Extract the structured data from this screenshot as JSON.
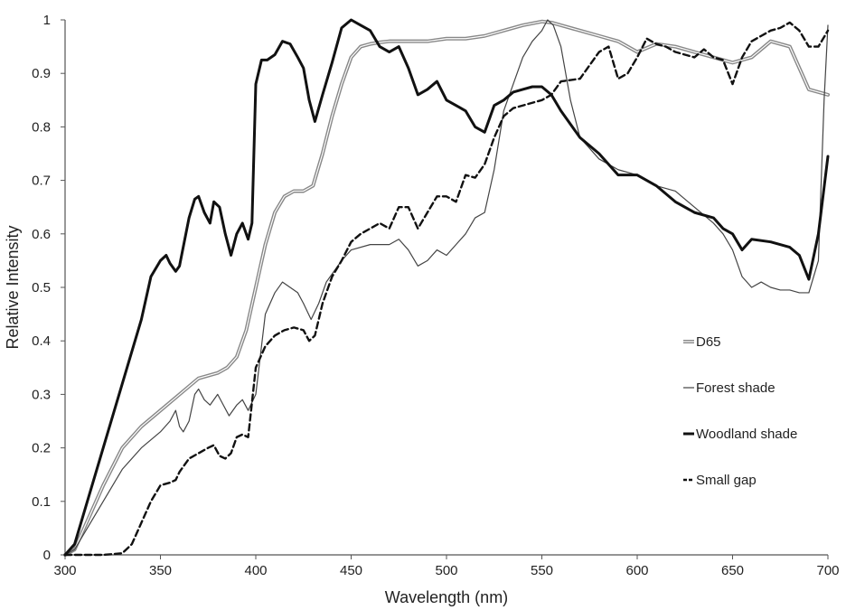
{
  "chart_data": {
    "type": "line",
    "title": "",
    "xlabel": "Wavelength (nm)",
    "ylabel": "Relative Intensity",
    "xlim": [
      300,
      700
    ],
    "ylim": [
      0,
      1
    ],
    "xticks": [
      300,
      350,
      400,
      450,
      500,
      550,
      600,
      650,
      700
    ],
    "yticks": [
      0,
      0.1,
      0.2,
      0.3,
      0.4,
      0.5,
      0.6,
      0.7,
      0.8,
      0.9,
      1
    ],
    "grid": false,
    "legend_position": "lower-right",
    "series": [
      {
        "name": "D65",
        "style": "double",
        "color": "#888888",
        "x": [
          300,
          305,
          310,
          320,
          330,
          340,
          350,
          360,
          365,
          370,
          380,
          385,
          390,
          395,
          400,
          405,
          410,
          415,
          420,
          425,
          430,
          435,
          440,
          445,
          450,
          455,
          460,
          465,
          470,
          480,
          490,
          500,
          510,
          520,
          530,
          540,
          550,
          555,
          560,
          570,
          580,
          590,
          600,
          610,
          620,
          630,
          640,
          650,
          660,
          670,
          680,
          690,
          700
        ],
        "y": [
          0,
          0.01,
          0.05,
          0.13,
          0.2,
          0.24,
          0.27,
          0.3,
          0.315,
          0.33,
          0.34,
          0.35,
          0.37,
          0.42,
          0.5,
          0.58,
          0.64,
          0.67,
          0.68,
          0.68,
          0.69,
          0.75,
          0.82,
          0.88,
          0.93,
          0.95,
          0.955,
          0.958,
          0.96,
          0.96,
          0.96,
          0.965,
          0.965,
          0.97,
          0.98,
          0.99,
          0.997,
          0.995,
          0.99,
          0.98,
          0.97,
          0.96,
          0.94,
          0.955,
          0.95,
          0.94,
          0.93,
          0.92,
          0.93,
          0.96,
          0.95,
          0.87,
          0.86
        ]
      },
      {
        "name": "Forest shade",
        "style": "thin",
        "color": "#444444",
        "x": [
          300,
          305,
          310,
          320,
          330,
          340,
          350,
          355,
          358,
          360,
          362,
          365,
          368,
          370,
          373,
          376,
          380,
          383,
          386,
          390,
          393,
          396,
          400,
          405,
          410,
          414,
          418,
          422,
          425,
          429,
          433,
          437,
          441,
          445,
          450,
          460,
          470,
          475,
          480,
          485,
          490,
          495,
          500,
          505,
          510,
          515,
          520,
          525,
          530,
          535,
          540,
          545,
          550,
          553,
          556,
          560,
          565,
          570,
          575,
          580,
          590,
          600,
          610,
          620,
          630,
          640,
          645,
          650,
          655,
          660,
          665,
          670,
          675,
          680,
          685,
          690,
          695,
          698,
          700
        ],
        "y": [
          0,
          0.01,
          0.04,
          0.1,
          0.16,
          0.2,
          0.23,
          0.25,
          0.27,
          0.24,
          0.23,
          0.25,
          0.3,
          0.31,
          0.29,
          0.28,
          0.3,
          0.28,
          0.26,
          0.28,
          0.29,
          0.27,
          0.3,
          0.45,
          0.49,
          0.51,
          0.5,
          0.49,
          0.47,
          0.44,
          0.47,
          0.51,
          0.53,
          0.55,
          0.57,
          0.58,
          0.58,
          0.59,
          0.57,
          0.54,
          0.55,
          0.57,
          0.56,
          0.58,
          0.6,
          0.63,
          0.64,
          0.72,
          0.83,
          0.88,
          0.93,
          0.96,
          0.98,
          1.0,
          0.99,
          0.95,
          0.85,
          0.78,
          0.76,
          0.74,
          0.72,
          0.71,
          0.69,
          0.68,
          0.65,
          0.62,
          0.6,
          0.57,
          0.52,
          0.5,
          0.51,
          0.5,
          0.495,
          0.495,
          0.49,
          0.49,
          0.55,
          0.85,
          0.99
        ]
      },
      {
        "name": "Woodland shade",
        "style": "thick",
        "color": "#111111",
        "x": [
          300,
          305,
          310,
          320,
          330,
          340,
          345,
          350,
          353,
          355,
          358,
          360,
          365,
          368,
          370,
          373,
          376,
          378,
          381,
          384,
          387,
          390,
          393,
          396,
          398,
          400,
          403,
          406,
          410,
          414,
          418,
          422,
          425,
          428,
          431,
          435,
          440,
          445,
          450,
          455,
          460,
          465,
          470,
          475,
          480,
          485,
          490,
          495,
          500,
          505,
          510,
          515,
          520,
          525,
          530,
          535,
          540,
          545,
          550,
          555,
          560,
          570,
          580,
          590,
          600,
          610,
          620,
          630,
          640,
          645,
          650,
          655,
          660,
          670,
          680,
          685,
          690,
          695,
          700
        ],
        "y": [
          0,
          0.02,
          0.08,
          0.2,
          0.32,
          0.44,
          0.52,
          0.55,
          0.56,
          0.545,
          0.53,
          0.54,
          0.63,
          0.665,
          0.67,
          0.64,
          0.62,
          0.66,
          0.65,
          0.6,
          0.56,
          0.6,
          0.62,
          0.59,
          0.62,
          0.88,
          0.925,
          0.925,
          0.935,
          0.96,
          0.955,
          0.93,
          0.91,
          0.85,
          0.81,
          0.86,
          0.92,
          0.985,
          1.0,
          0.99,
          0.98,
          0.95,
          0.94,
          0.95,
          0.91,
          0.86,
          0.87,
          0.885,
          0.85,
          0.84,
          0.83,
          0.8,
          0.79,
          0.84,
          0.85,
          0.865,
          0.87,
          0.875,
          0.875,
          0.86,
          0.83,
          0.78,
          0.75,
          0.71,
          0.71,
          0.69,
          0.66,
          0.64,
          0.63,
          0.61,
          0.6,
          0.57,
          0.59,
          0.585,
          0.575,
          0.56,
          0.515,
          0.6,
          0.745
        ]
      },
      {
        "name": "Small gap",
        "style": "dashed",
        "color": "#111111",
        "x": [
          300,
          310,
          320,
          330,
          335,
          340,
          345,
          350,
          355,
          358,
          360,
          365,
          370,
          375,
          378,
          381,
          384,
          387,
          390,
          393,
          396,
          400,
          405,
          410,
          415,
          420,
          425,
          428,
          431,
          435,
          440,
          445,
          450,
          455,
          460,
          465,
          470,
          475,
          480,
          485,
          490,
          495,
          500,
          505,
          510,
          515,
          520,
          525,
          530,
          535,
          540,
          545,
          550,
          555,
          560,
          570,
          580,
          585,
          590,
          595,
          600,
          605,
          610,
          615,
          620,
          625,
          630,
          635,
          640,
          645,
          650,
          655,
          660,
          665,
          670,
          675,
          680,
          685,
          690,
          695,
          700
        ],
        "y": [
          0,
          0,
          0,
          0.003,
          0.02,
          0.06,
          0.1,
          0.13,
          0.135,
          0.14,
          0.155,
          0.18,
          0.19,
          0.2,
          0.205,
          0.185,
          0.18,
          0.19,
          0.22,
          0.225,
          0.22,
          0.35,
          0.39,
          0.41,
          0.42,
          0.425,
          0.42,
          0.4,
          0.41,
          0.47,
          0.52,
          0.55,
          0.585,
          0.6,
          0.61,
          0.62,
          0.61,
          0.65,
          0.65,
          0.61,
          0.64,
          0.67,
          0.67,
          0.66,
          0.71,
          0.705,
          0.73,
          0.78,
          0.82,
          0.835,
          0.84,
          0.845,
          0.85,
          0.86,
          0.885,
          0.89,
          0.94,
          0.95,
          0.89,
          0.9,
          0.93,
          0.965,
          0.955,
          0.95,
          0.94,
          0.935,
          0.93,
          0.945,
          0.93,
          0.925,
          0.88,
          0.93,
          0.96,
          0.97,
          0.98,
          0.985,
          0.995,
          0.98,
          0.95,
          0.95,
          0.98
        ]
      }
    ]
  }
}
